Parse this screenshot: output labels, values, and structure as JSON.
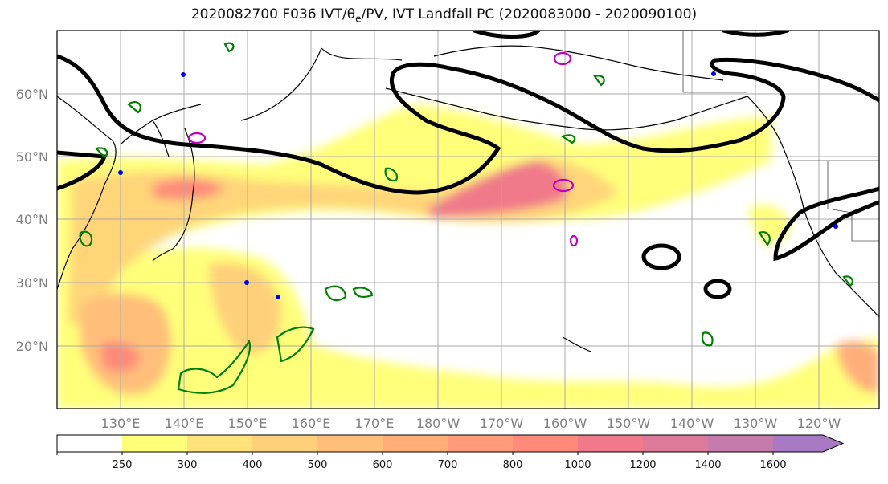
{
  "title": {
    "prefix": "2020082700 F036 IVT/",
    "theta": "θ",
    "theta_sub": "e",
    "suffix": "/PV, IVT Landfall PC (2020083000 - 2020090100)"
  },
  "lat_labels": [
    "60°N",
    "50°N",
    "40°N",
    "30°N",
    "20°N"
  ],
  "lon_labels": [
    "130°E",
    "140°E",
    "150°E",
    "160°E",
    "170°E",
    "180°W",
    "170°W",
    "160°W",
    "150°W",
    "140°W",
    "130°W",
    "120°W"
  ],
  "colorbar": {
    "ticks": [
      "250",
      "300",
      "400",
      "500",
      "600",
      "700",
      "800",
      "1000",
      "1200",
      "1400",
      "1600"
    ],
    "colors": [
      "#ffffff",
      "#ffff7a",
      "#ffe27a",
      "#ffd07a",
      "#ffbf7a",
      "#ffae7a",
      "#ff9a7a",
      "#ff8a7a",
      "#f07a8a",
      "#dd7a9a",
      "#c47aaa",
      "#a87ac4"
    ]
  },
  "colors": {
    "pv_contour": "#000000",
    "positive_contour": "#008000",
    "magenta_contour": "#c000c0",
    "blue_contour": "#0000ee",
    "grid": "#aaaaaa",
    "coastline": "#000000"
  }
}
